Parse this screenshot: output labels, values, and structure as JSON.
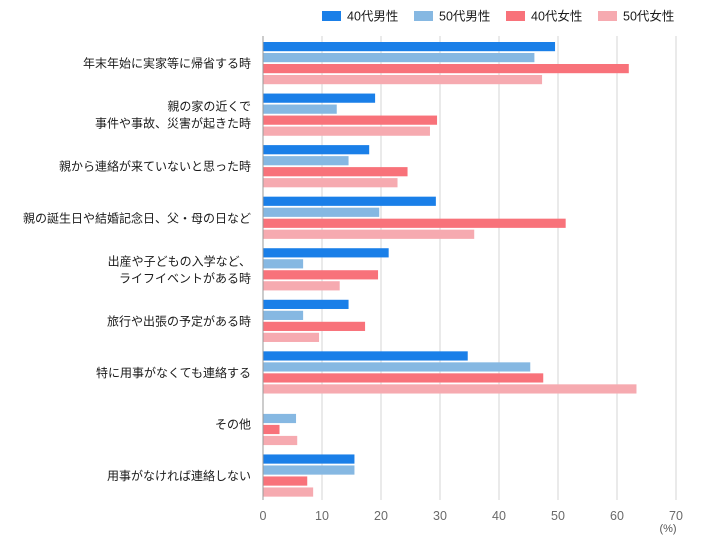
{
  "chart_data": {
    "type": "bar",
    "orientation": "horizontal",
    "categories": [
      [
        "年末年始に実家等に帰省する時"
      ],
      [
        "親の家の近くで",
        "事件や事故、災害が起きた時"
      ],
      [
        "親から連絡が来ていないと思った時"
      ],
      [
        "親の誕生日や結婚記念日、父・母の日など"
      ],
      [
        "出産や子どもの入学など、",
        "ライフイベントがある時"
      ],
      [
        "旅行や出張の予定がある時"
      ],
      [
        "特に用事がなくても連絡する"
      ],
      [
        "その他"
      ],
      [
        "用事がなければ連絡しない"
      ]
    ],
    "series": [
      {
        "name": "40代男性",
        "color": "#1a7fe8",
        "values": [
          49.5,
          19,
          18,
          29.3,
          21.3,
          14.5,
          34.7,
          0,
          15.5
        ]
      },
      {
        "name": "50代男性",
        "color": "#86b8e2",
        "values": [
          46,
          12.5,
          14.5,
          19.7,
          6.8,
          6.8,
          45.3,
          5.6,
          15.5
        ]
      },
      {
        "name": "40代女性",
        "color": "#f8727a",
        "values": [
          62,
          29.5,
          24.5,
          51.3,
          19.5,
          17.3,
          47.5,
          2.8,
          7.5
        ]
      },
      {
        "name": "50代女性",
        "color": "#f6aab0",
        "values": [
          47.3,
          28.3,
          22.8,
          35.8,
          13,
          9.5,
          63.3,
          5.8,
          8.5
        ]
      }
    ],
    "xlim": [
      0,
      70
    ],
    "xticks": [
      0,
      10,
      20,
      30,
      40,
      50,
      60,
      70
    ],
    "unit_label": "(%)",
    "grid": true,
    "legend_position": "top-right"
  }
}
